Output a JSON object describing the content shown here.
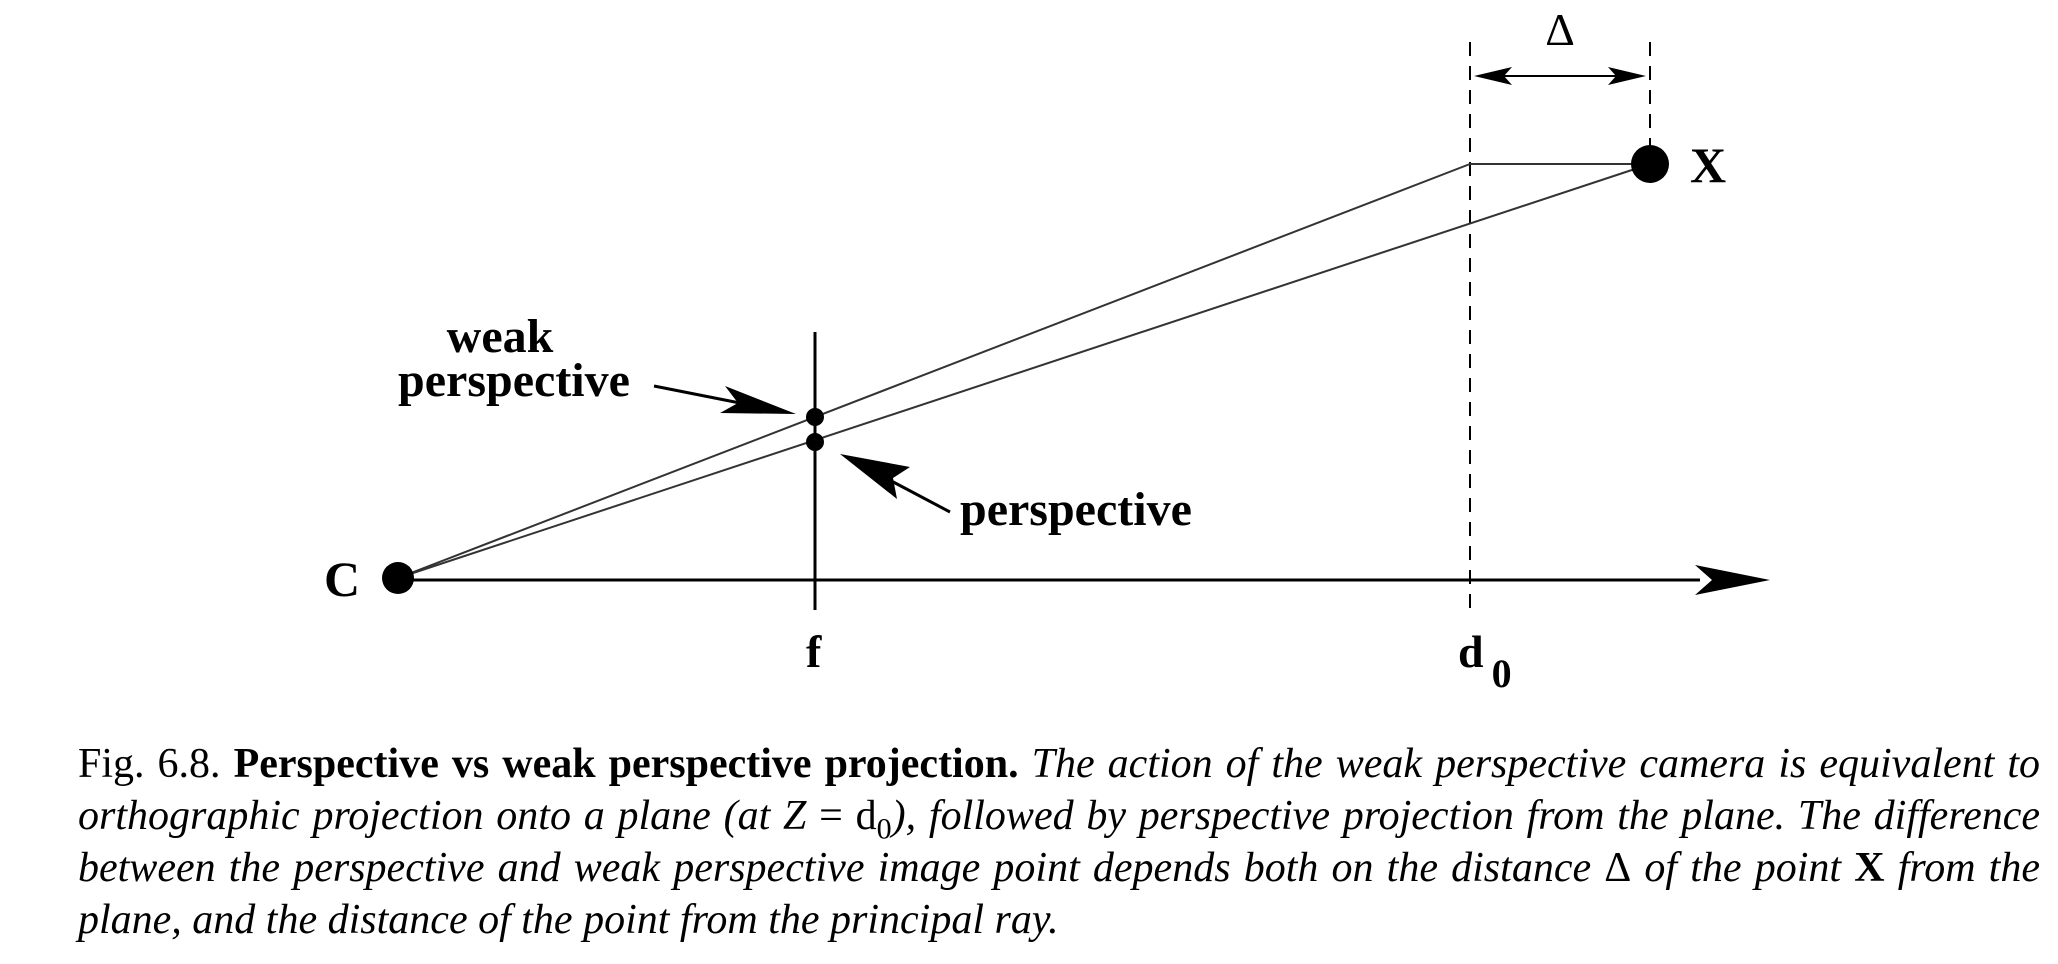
{
  "diagram": {
    "labels": {
      "camera_center": "C",
      "point": "X",
      "focal": "f",
      "plane_depth_base": "d",
      "plane_depth_sub": "0",
      "delta": "Δ",
      "weak_line1": "weak",
      "weak_line2": "perspective",
      "perspective": "perspective"
    }
  },
  "caption": {
    "fig_number": "Fig. 6.8.",
    "title": "Perspective vs weak perspective projection.",
    "text_part1": "The action of the weak perspective camera is equivalent to orthographic projection onto a plane (at ",
    "eq_var": "Z",
    "eq_sign": " = ",
    "eq_d": "d",
    "eq_sub": "0",
    "text_part2": "), followed by perspective projection from the plane. The difference between the perspective and weak perspective image point depends both on the distance ",
    "delta": "Δ",
    "text_part3": " of the point ",
    "point": "X",
    "text_part4": " from the plane, and the distance of the point from the principal ray."
  }
}
